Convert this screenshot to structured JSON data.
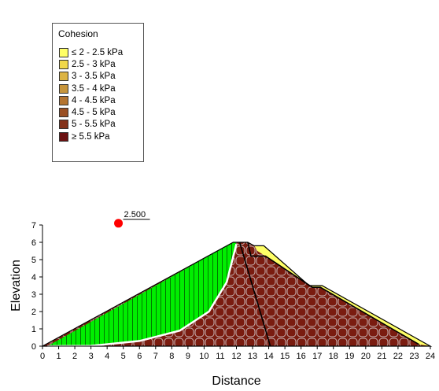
{
  "legend": {
    "title": "Cohesion",
    "items": [
      {
        "label": "≤ 2 - 2.5 kPa",
        "color": "#ffff66"
      },
      {
        "label": "2.5 - 3 kPa",
        "color": "#f0d84a"
      },
      {
        "label": "3 - 3.5 kPa",
        "color": "#dcb444"
      },
      {
        "label": "3.5 - 4 kPa",
        "color": "#c8963c"
      },
      {
        "label": "4 - 4.5 kPa",
        "color": "#b47430"
      },
      {
        "label": "4.5 - 5 kPa",
        "color": "#9a5024"
      },
      {
        "label": "5 - 5.5 kPa",
        "color": "#84321a"
      },
      {
        "label": "≥ 5.5 kPa",
        "color": "#6a1010"
      }
    ]
  },
  "factor_of_safety": {
    "label": "2.500",
    "center_x": 4.7,
    "center_y": 7.1,
    "color": "#ff0000"
  },
  "chart_data": {
    "type": "diagram",
    "xlabel": "Distance",
    "ylabel": "Elevation",
    "xlim": [
      0,
      24
    ],
    "ylim": [
      0,
      7
    ],
    "x_ticks": [
      0,
      1,
      2,
      3,
      4,
      5,
      6,
      7,
      8,
      9,
      10,
      11,
      12,
      13,
      14,
      15,
      16,
      17,
      18,
      19,
      20,
      21,
      22,
      23,
      24
    ],
    "y_ticks": [
      0,
      1,
      2,
      3,
      4,
      5,
      6,
      7
    ],
    "slope_outline": [
      [
        0,
        0
      ],
      [
        11.8,
        6
      ],
      [
        12.7,
        6
      ],
      [
        13.1,
        5.8
      ],
      [
        13.7,
        5.8
      ],
      [
        16.5,
        3.5
      ],
      [
        17.3,
        3.5
      ],
      [
        24,
        0
      ]
    ],
    "slip_surface": [
      [
        0.3,
        0
      ],
      [
        3,
        0.02
      ],
      [
        6,
        0.3
      ],
      [
        8.5,
        0.9
      ],
      [
        10.3,
        2
      ],
      [
        11.4,
        3.7
      ],
      [
        12,
        5.9
      ]
    ],
    "core_boundary": [
      [
        12.2,
        6
      ],
      [
        14.1,
        0
      ]
    ],
    "inner_layer": [
      [
        12.7,
        6
      ],
      [
        12.9,
        5.2
      ],
      [
        13.8,
        5.2
      ],
      [
        16.7,
        3.4
      ],
      [
        17.2,
        3.4
      ],
      [
        23.3,
        0.1
      ]
    ],
    "colors": {
      "sliding_mass": "#00ee00",
      "soil": "#7a1c10",
      "mesh_lines": "#c8b4b4",
      "yellow_layer": "#ffff66",
      "slip_surface": "#ffffff"
    }
  }
}
